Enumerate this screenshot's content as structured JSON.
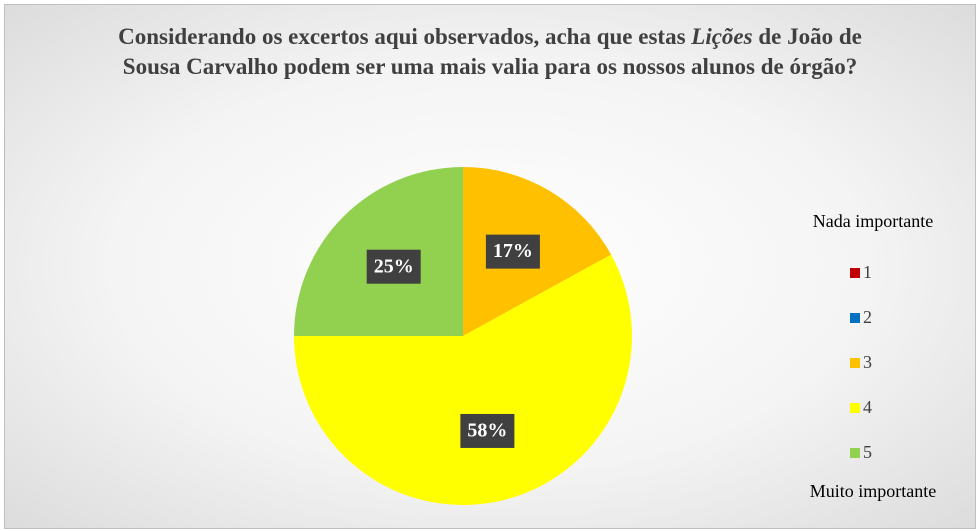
{
  "chart_data": {
    "type": "pie",
    "title": [
      {
        "text": "Considerando os excertos aqui observados, acha que estas ",
        "italic": false
      },
      {
        "text": "Lições",
        "italic": true
      },
      {
        "text": " de João de Sousa Carvalho podem ser uma mais valia para os nossos alunos de órgão?",
        "italic": false
      }
    ],
    "legend_top": "Nada importante",
    "legend_bottom": "Muito importante",
    "categories": [
      "1",
      "2",
      "3",
      "4",
      "5"
    ],
    "values": [
      0,
      0,
      17,
      58,
      25
    ],
    "value_labels": [
      null,
      null,
      "17%",
      "58%",
      "25%"
    ],
    "colors": [
      "#c00000",
      "#0070c0",
      "#ffc000",
      "#ffff00",
      "#92d050"
    ],
    "legend": "right"
  }
}
